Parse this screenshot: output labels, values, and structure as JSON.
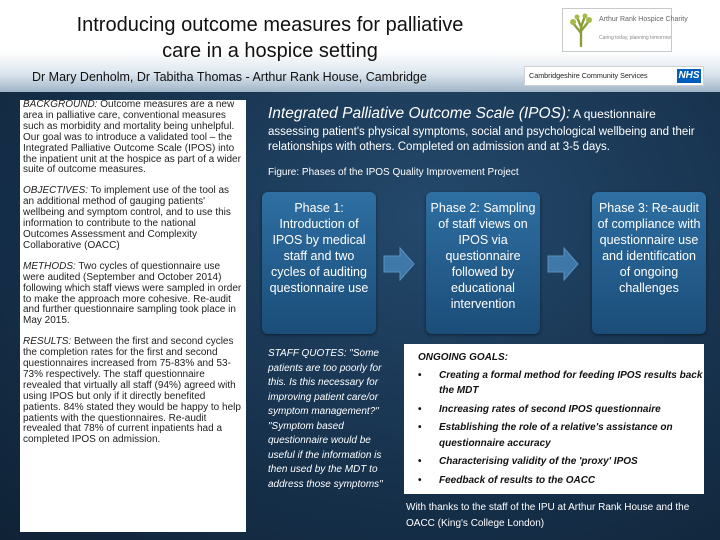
{
  "header": {
    "title_line1": "Introducing outcome measures for palliative",
    "title_line2": "care in a hospice setting",
    "authors": "Dr Mary Denholm, Dr Tabitha Thomas - Arthur Rank House, Cambridge"
  },
  "logos": {
    "hospice_name": "Arthur Rank Hospice Charity",
    "hospice_tagline": "Caring today, planning tomorrow",
    "community_services": "Cambridgeshire Community Services",
    "nhs": "NHS",
    "nhs_color": "#005eb8"
  },
  "left_column": {
    "background_label": "Background:",
    "background_text": " Outcome measures are a new area in palliative care, conventional measures such as morbidity and mortality being unhelpful. Our goal was to introduce a validated tool – the Integrated Palliative Outcome Scale (IPOS) into the inpatient unit at the hospice as part of a wider suite of outcome measures.",
    "objectives_label": "Objectives:",
    "objectives_text": " To implement use of the tool as an additional method of gauging patients' wellbeing and symptom control, and to use this information to contribute to the national Outcomes Assessment and Complexity Collaborative (OACC)",
    "methods_label": "Methods:",
    "methods_text": " Two cycles of questionnaire use were audited (September and October 2014) following which staff views were sampled in order to make the approach more cohesive. Re-audit and further questionnaire sampling took place in May 2015.",
    "results_label": "Results:",
    "results_text": " Between the first and second cycles the completion rates for the first and second questionnaires increased from 75-83% and 53-73% respectively. The staff questionnaire revealed that virtually all staff (94%) agreed with using IPOS but only if it directly benefited patients. 84% stated they would be happy to help patients with the questionnaires. Re-audit revealed that 78% of current inpatients had a completed IPOS on admission."
  },
  "ipos": {
    "title_main": "Integrated Palliative Outcome Scale (IPOS):",
    "title_suffix": " A questionnaire",
    "body": "assessing patient's physical symptoms, social and psychological wellbeing and their relationships with others. Completed on admission and at 3-5 days.",
    "figure_caption": "Figure: Phases of the IPOS Quality Improvement Project"
  },
  "phases": [
    "Phase 1: Introduction of IPOS by medical staff and two cycles of auditing questionnaire use",
    "Phase 2: Sampling of staff views on IPOS via questionnaire followed by educational intervention",
    "Phase 3: Re-audit of compliance with questionnaire use and identification of ongoing challenges"
  ],
  "staff_quotes": {
    "label": "Staff quotes:",
    "text": " \"Some patients are too poorly for this. Is this necessary for improving patient care/or symptom management?\" \"Symptom based questionnaire would be useful if the information is then used by the MDT to address those symptoms\""
  },
  "ongoing_goals": {
    "title": "Ongoing goals:",
    "items": [
      "Creating a formal method for feeding IPOS results back the MDT",
      "Increasing rates of second IPOS questionnaire",
      "Establishing the role of a relative's assistance on questionnaire accuracy",
      "Characterising validity of the 'proxy' IPOS",
      "Feedback of results to the OACC"
    ]
  },
  "thanks": "With thanks to the staff of the IPU at Arthur Rank House and the OACC (King's College London)",
  "colors": {
    "background": "#17324d",
    "phase_box": "#2569a0",
    "panel": "#ffffff"
  }
}
